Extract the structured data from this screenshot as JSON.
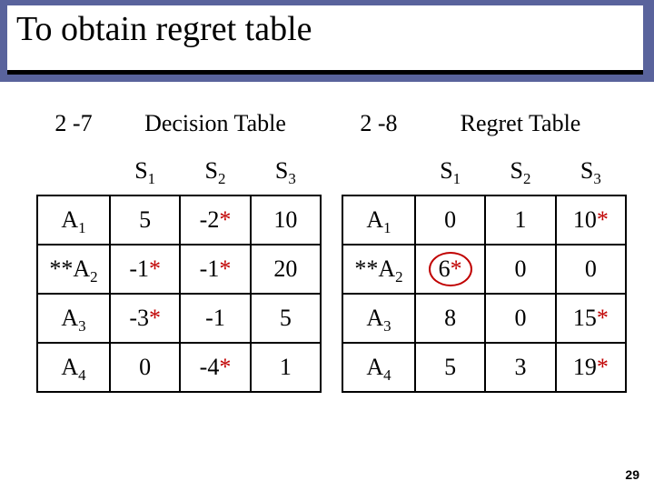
{
  "title": "To obtain regret table",
  "page_number": "29",
  "left_label": "2 -7",
  "right_label": "2 -8",
  "left_title": "Decision Table",
  "right_title": "Regret Table",
  "state_headers": {
    "s1": "S",
    "s1sub": "1",
    "s2": "S",
    "s2sub": "2",
    "s3": "S",
    "s3sub": "3"
  },
  "rows": {
    "r1": {
      "ll": "A",
      "ls": "1",
      "d1": "5",
      "d1s": "",
      "d2": "-2",
      "d2s": "*",
      "d3": "10",
      "d3s": "",
      "rl": "A",
      "rs": "1",
      "g1": "0",
      "g1s": "",
      "g2": "1",
      "g2s": "",
      "g3": "10",
      "g3s": "*"
    },
    "r2": {
      "ll": "**A",
      "ls": "2",
      "d1": "-1",
      "d1s": "*",
      "d2": "-1",
      "d2s": "*",
      "d3": "20",
      "d3s": "",
      "rl": "**A",
      "rs": "2",
      "g1": "6",
      "g1s": "*",
      "g2": "0",
      "g2s": "",
      "g3": "0",
      "g3s": "",
      "circle": true
    },
    "r3": {
      "ll": "A",
      "ls": "3",
      "d1": "-3",
      "d1s": "*",
      "d2": "-1",
      "d2s": "",
      "d3": "5",
      "d3s": "",
      "rl": "A",
      "rs": "3",
      "g1": "8",
      "g1s": "",
      "g2": "0",
      "g2s": "",
      "g3": "15",
      "g3s": "*"
    },
    "r4": {
      "ll": "A",
      "ls": "4",
      "d1": "0",
      "d1s": "",
      "d2": "-4",
      "d2s": "*",
      "d3": "1",
      "d3s": "",
      "rl": "A",
      "rs": "4",
      "g1": "5",
      "g1s": "",
      "g2": "3",
      "g2s": "",
      "g3": "19",
      "g3s": "*"
    }
  }
}
